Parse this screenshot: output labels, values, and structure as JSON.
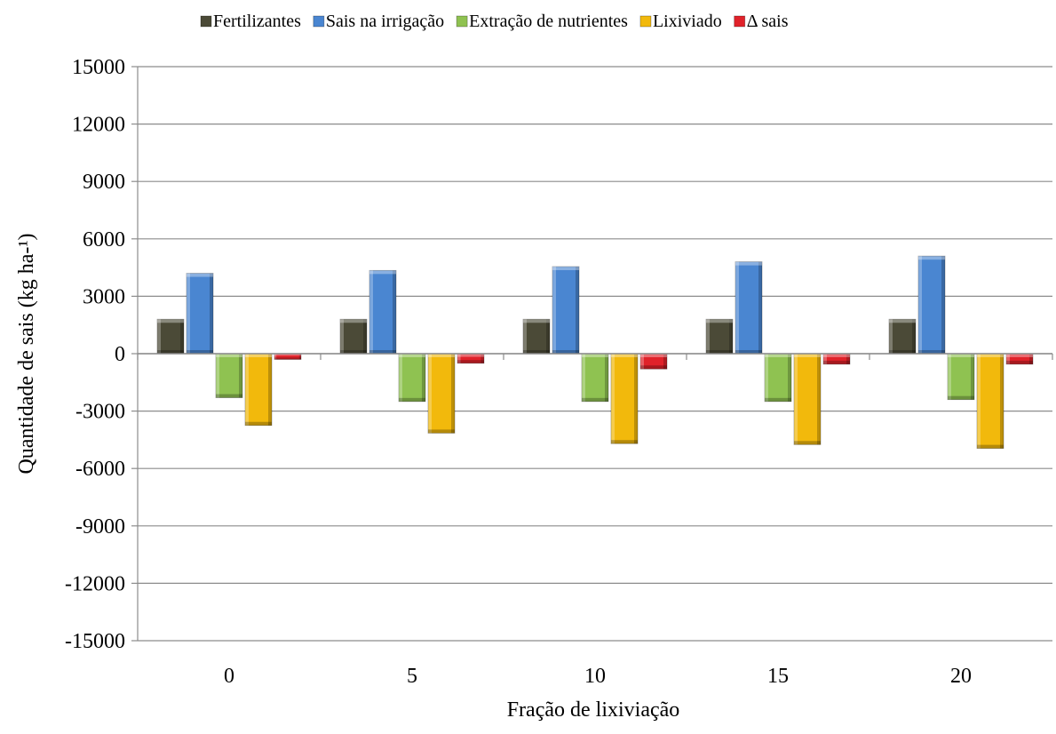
{
  "chart_data": {
    "type": "bar",
    "title": "",
    "xlabel": "Fração de lixiviação",
    "ylabel": "Quantidade de sais (kg ha-¹)",
    "ylim": [
      -15000,
      15000
    ],
    "yticks": [
      15000,
      12000,
      9000,
      6000,
      3000,
      0,
      -3000,
      -6000,
      -9000,
      -12000,
      -15000
    ],
    "ytick_labels": [
      "15000",
      "12000",
      "9000",
      "6000",
      "3000",
      "0",
      "-3000",
      "-6000",
      "-9000",
      "-12000",
      "-15000"
    ],
    "categories": [
      "0",
      "5",
      "10",
      "15",
      "20"
    ],
    "grid": "horizontal",
    "legend_position": "top",
    "series": [
      {
        "name": "Fertilizantes",
        "color": "#4b4a37",
        "values": [
          1800,
          1800,
          1800,
          1800,
          1800
        ]
      },
      {
        "name": "Sais na irrigação",
        "color": "#4a86d1",
        "values": [
          4200,
          4350,
          4550,
          4800,
          5100
        ]
      },
      {
        "name": "Extração de nutrientes",
        "color": "#8fc251",
        "values": [
          -2300,
          -2500,
          -2500,
          -2500,
          -2400
        ]
      },
      {
        "name": "Lixiviado",
        "color": "#f2b90c",
        "values": [
          -3750,
          -4150,
          -4700,
          -4750,
          -4950
        ]
      },
      {
        "name": "Δ sais",
        "color": "#e0222a",
        "values": [
          -300,
          -500,
          -800,
          -550,
          -550
        ]
      }
    ]
  }
}
